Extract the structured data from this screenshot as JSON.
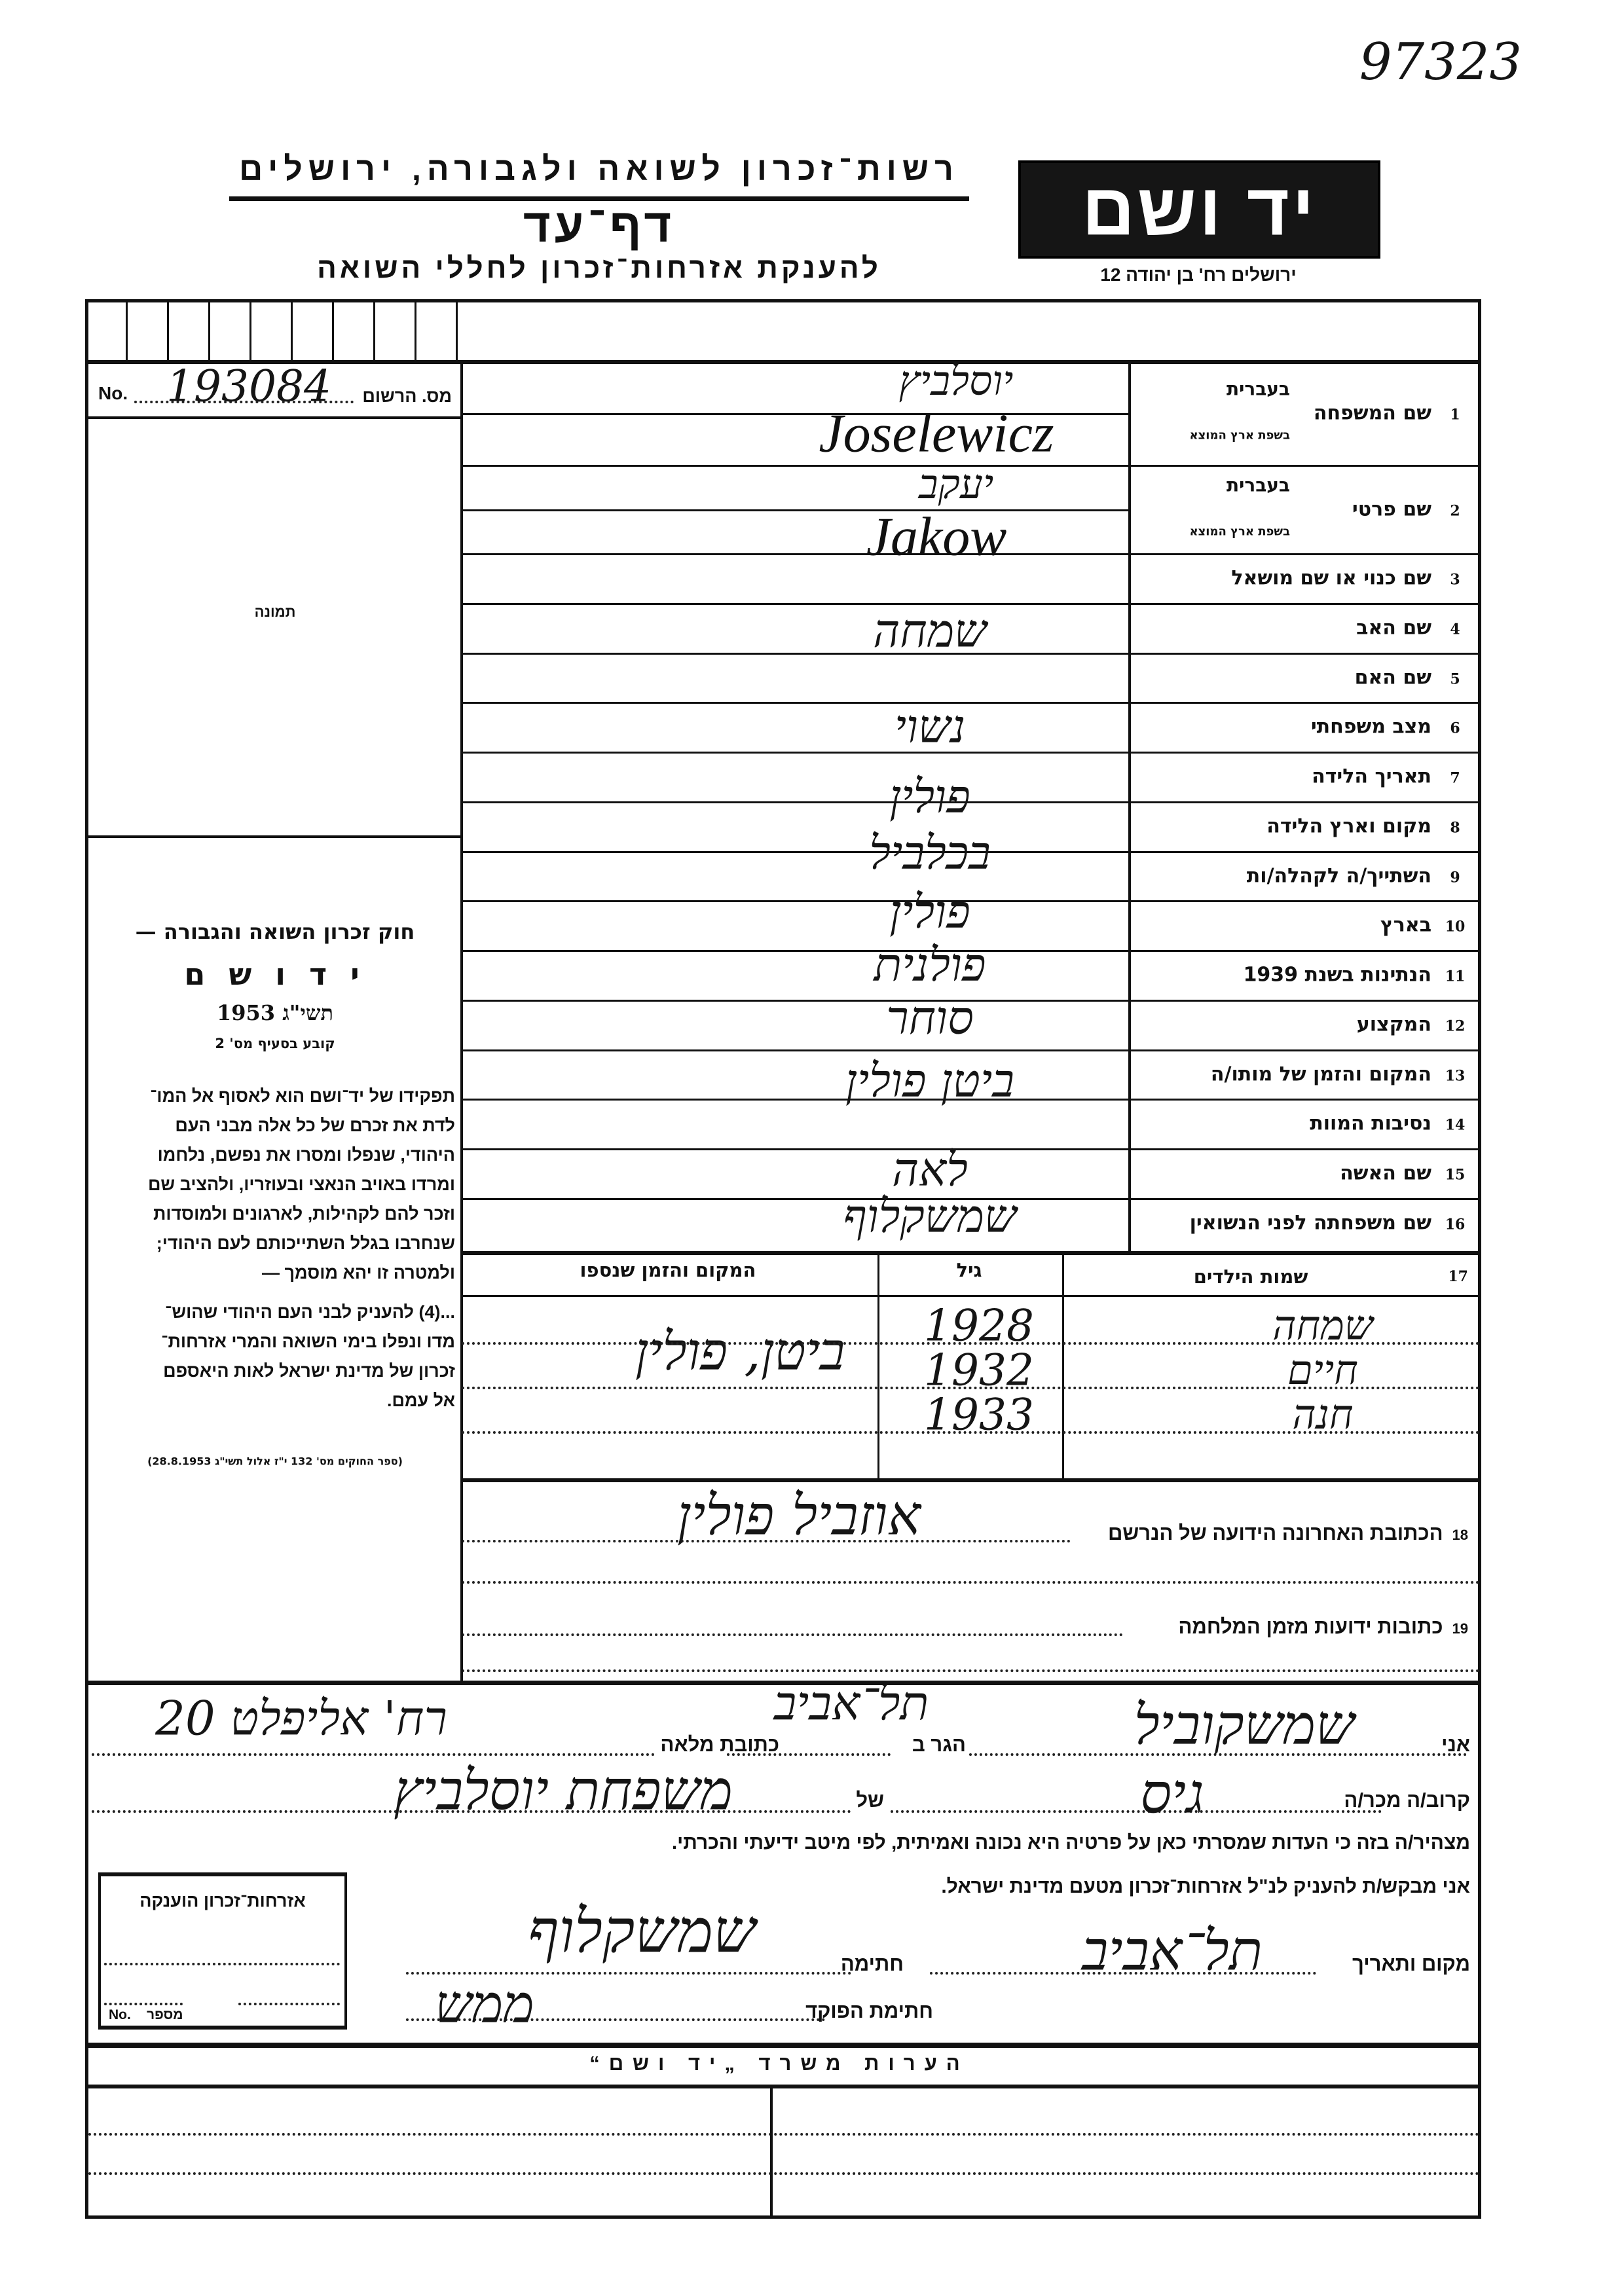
{
  "archive_number": "97323",
  "header": {
    "org": "רשות־זכרון לשואה ולגבורה, ירושלים",
    "title": "דף־עד",
    "subtitle": "להענקת אזרחות־זכרון לחללי השואה",
    "logo": "יד ושם",
    "address": "ירושלים רח' בן יהודה 12"
  },
  "registration": {
    "no_label": "No.",
    "label": "מס. הרשום",
    "value": "193084"
  },
  "photo_label": "תמונה",
  "law": {
    "title": "חוק זכרון השואה והגבורה —",
    "name": "י ד ו ש ם",
    "year": "תשי\"ג 1953",
    "clause": "קובע בסעיף מס' 2",
    "paragraph1": [
      "תפקידו של יד־ושם הוא לאסוף אל המו־",
      "לדת את זכרם של כל אלה מבני העם",
      "היהודי, שנפלו ומסרו את נפשם, נלחמו",
      "ומרדו באויב הנאצי ובעוזריו, ולהציב שם",
      "וזכר להם לקהילות, לארגונים ולמוסדות",
      "שנחרבו בגלל השתייכותם לעם היהודי;",
      "ולמטרה זו יהא מוסמך —"
    ],
    "paragraph2": [
      "...(4) להעניק לבני העם היהודי שהוש־",
      "מדו ונפלו בימי השואה והמרי אזרחות־",
      "זכרון של מדינת ישראל לאות היאספם",
      "אל עמם."
    ],
    "footnote": "(ספר החוקים מס' 132 י\"ז אלול תשי\"ג 28.8.1953)"
  },
  "fields": [
    {
      "num": "1",
      "label": "שם המשפחה",
      "sub_hebrew": "בעברית",
      "sub_native": "בשפת ארץ המוצא",
      "value_hebrew": "יוסלביץ",
      "value_native": "Joselewicz"
    },
    {
      "num": "2",
      "label": "שם פרטי",
      "sub_hebrew": "בעברית",
      "sub_native": "בשפת ארץ המוצא",
      "value_hebrew": "יעקב",
      "value_native": "Jakow"
    },
    {
      "num": "3",
      "label": "שם כנוי או שם מושאל",
      "value": ""
    },
    {
      "num": "4",
      "label": "שם האב",
      "value": "שמחה"
    },
    {
      "num": "5",
      "label": "שם האם",
      "value": ""
    },
    {
      "num": "6",
      "label": "מצב משפחתי",
      "value": "נשוי"
    },
    {
      "num": "7",
      "label": "תאריך הלידה",
      "value": ""
    },
    {
      "num": "8",
      "label": "מקום וארץ הלידה",
      "value": "פולין"
    },
    {
      "num": "9",
      "label": "השתייך/ה לקהלה/ות",
      "value": "בכלביל"
    },
    {
      "num": "10",
      "label": "בארץ",
      "value": "פולין"
    },
    {
      "num": "11",
      "label": "הנתינות בשנת 1939",
      "value": "פולנית"
    },
    {
      "num": "12",
      "label": "המקצוע",
      "value": "סוחר"
    },
    {
      "num": "13",
      "label": "המקום והזמן של מותו/ה",
      "value": "ביטן   פולין"
    },
    {
      "num": "14",
      "label": "נסיבות המוות",
      "value": ""
    },
    {
      "num": "15",
      "label": "שם האשה",
      "value": "לאה"
    },
    {
      "num": "16",
      "label": "שם משפחתה לפני הנשואין",
      "value": "שמשקלוף"
    }
  ],
  "children": {
    "num": "17",
    "headers": {
      "names": "שמות הילדים",
      "age": "גיל",
      "place": "המקום והזמן שנספו"
    },
    "rows": [
      {
        "name": "שמחה",
        "year": "1928"
      },
      {
        "name": "חיים",
        "year": "1932"
      },
      {
        "name": "חנה",
        "year": "1933"
      }
    ],
    "place": "ביטן, פולין"
  },
  "last_address": {
    "num": "18",
    "label": "הכתובת האחרונה הידועה של הנרשם",
    "value": "אוזביל פולין"
  },
  "wartime_addresses": {
    "num": "19",
    "label": "כתובות ידועות מזמן המלחמה",
    "value": ""
  },
  "declaration": {
    "i_label": "אני",
    "name": "שמשקוביל",
    "resides_label": "הגר ב",
    "city": "תל־אביב",
    "address_label": "כתובת מלאה",
    "address": "רח' אליפלט 20",
    "relation_label": "קרוב/ה מכר/ה",
    "relation": "גיס",
    "of_label": "של",
    "of_value": "משפחת יוסלביץ",
    "statement": "מצהיר/ה בזה כי העדות שמסרתי כאן על פרטיה היא נכונה ואמיתית, לפי מיטב ידיעתי והכרתי.",
    "request": "אני מבקש/ת להעניק לנ\"ל אזרחות־זכרון מטעם מדינת ישראל.",
    "place_date_label": "מקום ותאריך",
    "place_date": "תל־אביב",
    "signature_label": "חתימה",
    "signature": "שמשקלוף",
    "official_label": "חתימת הפוקד",
    "official_signature": "ממש"
  },
  "granted_box": {
    "title": "אזרחות־זכרון הוענקה",
    "no_label": "No.",
    "number_label": "מספר"
  },
  "remarks": {
    "title": "הערות משרד „יד ושם“"
  }
}
